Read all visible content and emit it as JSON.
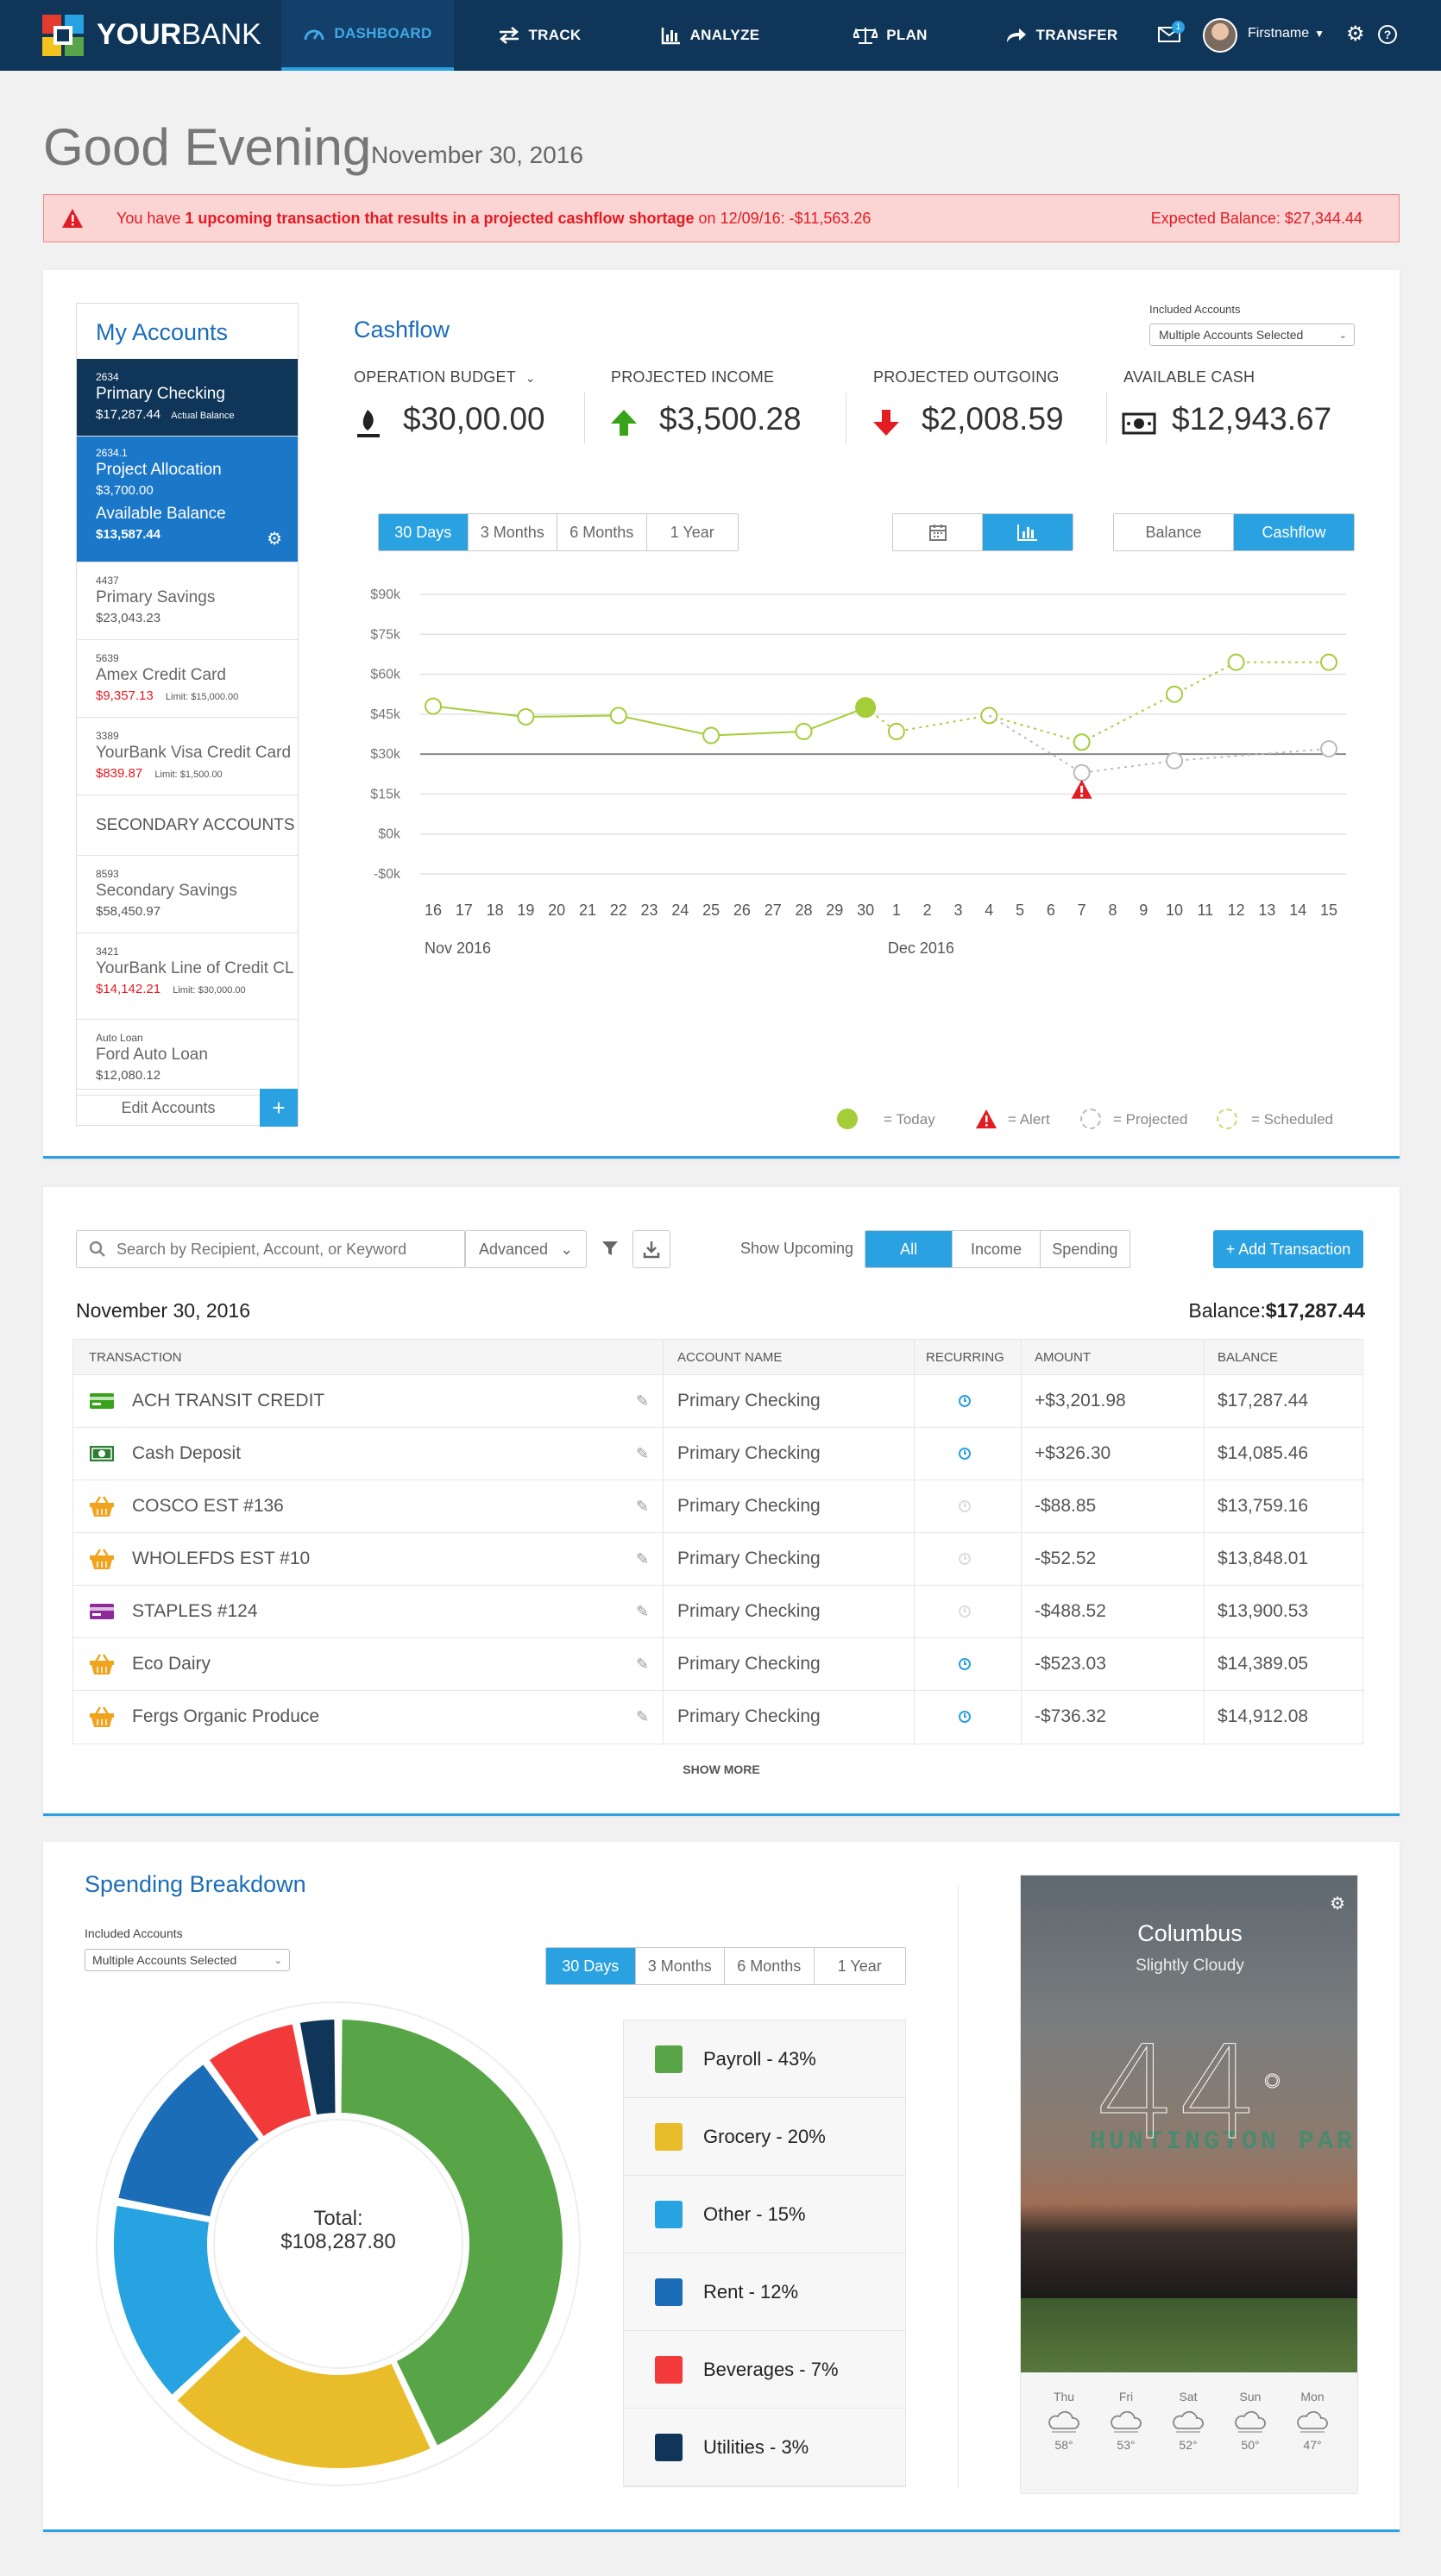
{
  "nav": {
    "brand_pre": "YOUR",
    "brand_post": "BANK",
    "items": [
      {
        "label": "DASHBOARD",
        "icon": "gauge-icon"
      },
      {
        "label": "TRACK",
        "icon": "arrows-icon"
      },
      {
        "label": "ANALYZE",
        "icon": "bar-chart-icon"
      },
      {
        "label": "PLAN",
        "icon": "scale-icon"
      },
      {
        "label": "TRANSFER",
        "icon": "forward-arrow-icon"
      }
    ],
    "mail_badge": "1",
    "user_name": "Firstname"
  },
  "greeting": {
    "title": "Good Evening",
    "date": "November 30, 2016"
  },
  "alert": {
    "pre": "You have ",
    "bold": "1 upcoming transaction that results in a projected cashflow shortage",
    "post": " on 12/09/16: -$11,563.26",
    "expected": "Expected Balance: $27,344.44"
  },
  "accounts": {
    "title": "My Accounts",
    "primary": [
      {
        "num": "2634",
        "name": "Primary Checking",
        "balance": "$17,287.44",
        "note": "Actual Balance"
      },
      {
        "num": "2634.1",
        "name": "Project Allocation",
        "sub": "$3,700.00",
        "avail_label": "Available Balance",
        "balance": "$13,587.44"
      },
      {
        "num": "4437",
        "name": "Primary Savings",
        "balance": "$23,043.23"
      },
      {
        "num": "5639",
        "name": "Amex Credit Card",
        "balance": "$9,357.13",
        "limit": "Limit: $15,000.00"
      },
      {
        "num": "3389",
        "name": "YourBank Visa Credit Card",
        "balance": "$839.87",
        "limit": "Limit: $1,500.00"
      }
    ],
    "secondary_title": "SECONDARY ACCOUNTS",
    "secondary": [
      {
        "num": "8593",
        "name": "Secondary Savings",
        "balance": "$58,450.97"
      },
      {
        "num": "3421",
        "name": "YourBank Line of Credit CL",
        "balance": "$14,142.21",
        "limit": "Limit: $30,000.00"
      },
      {
        "num": "Auto Loan",
        "name": "Ford Auto  Loan",
        "balance": "$12,080.12"
      }
    ],
    "edit_label": "Edit Accounts",
    "add_label": "+"
  },
  "cashflow": {
    "title": "Cashflow",
    "included_label": "Included Accounts",
    "included_value": "Multiple Accounts Selected",
    "kpis": [
      {
        "label": "OPERATION BUDGET",
        "value": "$30,00.00"
      },
      {
        "label": "PROJECTED INCOME",
        "value": "$3,500.28"
      },
      {
        "label": "PROJECTED OUTGOING",
        "value": "$2,008.59"
      },
      {
        "label": "AVAILABLE CASH",
        "value": "$12,943.67"
      }
    ],
    "ranges": [
      "30 Days",
      "3 Months",
      "6 Months",
      "1 Year"
    ],
    "views": [
      "Balance",
      "Cashflow"
    ],
    "legend": {
      "today": "= Today",
      "alert": "= Alert",
      "projected": "= Projected",
      "scheduled": "= Scheduled"
    }
  },
  "chart_data": {
    "type": "line",
    "y_ticks": [
      "$90k",
      "$75k",
      "$60k",
      "$45k",
      "$30k",
      "$15k",
      "$0k",
      "-$0k"
    ],
    "ylim": [
      -15,
      90
    ],
    "x_ticks": [
      "16",
      "17",
      "18",
      "19",
      "20",
      "21",
      "22",
      "23",
      "24",
      "25",
      "26",
      "27",
      "28",
      "29",
      "30",
      "1",
      "2",
      "3",
      "4",
      "5",
      "6",
      "7",
      "8",
      "9",
      "10",
      "11",
      "12",
      "13",
      "14",
      "15"
    ],
    "month_labels": [
      "Nov 2016",
      "Dec 2016"
    ],
    "threshold": 30,
    "series": [
      {
        "role": "actual",
        "x": [
          16,
          19,
          22,
          25,
          28,
          30
        ],
        "y": [
          48,
          44,
          44.5,
          37,
          38.5,
          47.5
        ]
      },
      {
        "role": "scheduled",
        "x": [
          30,
          31,
          34,
          37,
          40,
          42,
          45
        ],
        "y": [
          47.5,
          38.5,
          44.5,
          34.5,
          52.5,
          64.5,
          64.5
        ]
      },
      {
        "role": "projected",
        "x": [
          34,
          37,
          40,
          45
        ],
        "y": [
          44.5,
          23,
          27.5,
          32
        ]
      }
    ],
    "alert_point": {
      "x": 37,
      "y": 16.5
    },
    "today_point": {
      "x": 30,
      "y": 47.5
    }
  },
  "transactions": {
    "search_placeholder": "Search by Recipient, Account, or Keyword",
    "advanced": "Advanced",
    "show_upcoming": "Show Upcoming",
    "filters": [
      "All",
      "Income",
      "Spending"
    ],
    "add_label": "+ Add Transaction",
    "date": "November 30,  2016",
    "balance_label": "Balance:",
    "balance": "$17,287.44",
    "columns": [
      "TRANSACTION",
      "ACCOUNT NAME",
      "RECURRING",
      "AMOUNT",
      "BALANCE"
    ],
    "rows": [
      {
        "icon": "card-icon",
        "color": "#37a21a",
        "name": "ACH TRANSIT CREDIT",
        "account": "Primary Checking",
        "recurring": true,
        "amount": "+$3,201.98",
        "balance": "$17,287.44"
      },
      {
        "icon": "cash-icon",
        "color": "#2e7d32",
        "name": "Cash Deposit",
        "account": "Primary Checking",
        "recurring": true,
        "amount": "+$326.30",
        "balance": "$14,085.46"
      },
      {
        "icon": "basket-icon",
        "color": "#f0a31c",
        "name": "COSCO EST #136",
        "account": "Primary Checking",
        "recurring": false,
        "amount": "-$88.85",
        "balance": "$13,759.16"
      },
      {
        "icon": "basket-icon",
        "color": "#f0a31c",
        "name": "WHOLEFDS EST #10",
        "account": "Primary Checking",
        "recurring": false,
        "amount": "-$52.52",
        "balance": "$13,848.01"
      },
      {
        "icon": "card-icon",
        "color": "#8e2a9a",
        "name": "STAPLES #124",
        "account": "Primary Checking",
        "recurring": false,
        "amount": "-$488.52",
        "balance": "$13,900.53"
      },
      {
        "icon": "basket-icon",
        "color": "#f0a31c",
        "name": "Eco Dairy",
        "account": "Primary Checking",
        "recurring": true,
        "amount": "-$523.03",
        "balance": "$14,389.05"
      },
      {
        "icon": "basket-icon",
        "color": "#f0a31c",
        "name": "Fergs Organic Produce",
        "account": "Primary Checking",
        "recurring": true,
        "amount": "-$736.32",
        "balance": "$14,912.08"
      }
    ],
    "show_more": "SHOW MORE"
  },
  "spending": {
    "title": "Spending Breakdown",
    "included_label": "Included Accounts",
    "included_value": "Multiple Accounts Selected",
    "ranges": [
      "30 Days",
      "3 Months",
      "6 Months",
      "1 Year"
    ],
    "total_label": "Total:",
    "total": "$108,287.80",
    "categories": [
      {
        "label": "Payroll - 43%",
        "value": 43,
        "color": "#57a546"
      },
      {
        "label": "Grocery - 20%",
        "value": 20,
        "color": "#e9bd2a"
      },
      {
        "label": "Other - 15%",
        "value": 15,
        "color": "#28a3e1"
      },
      {
        "label": "Rent - 12%",
        "value": 12,
        "color": "#1b6db8"
      },
      {
        "label": "Beverages - 7%",
        "value": 7,
        "color": "#f23a3a"
      },
      {
        "label": "Utilities - 3%",
        "value": 3,
        "color": "#0f3558"
      }
    ]
  },
  "weather": {
    "city": "Columbus",
    "condition": "Slightly Cloudy",
    "temp": "44",
    "degree": "°",
    "sign": "HUNTINGTON PARK",
    "forecast": [
      {
        "day": "Thu",
        "temp": "58°"
      },
      {
        "day": "Fri",
        "temp": "53°"
      },
      {
        "day": "Sat",
        "temp": "52°"
      },
      {
        "day": "Sun",
        "temp": "50°"
      },
      {
        "day": "Mon",
        "temp": "47°"
      }
    ]
  }
}
